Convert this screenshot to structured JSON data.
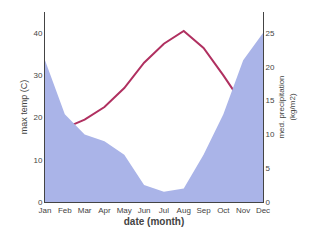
{
  "chart_data": {
    "type": "line",
    "xlabel": "date (month)",
    "ylabel": "max temp (C)",
    "y2label": "med. precipitation\n(kg/m2)",
    "categories": [
      "Jan",
      "Feb",
      "Mar",
      "Apr",
      "May",
      "Jun",
      "Jul",
      "Aug",
      "Sep",
      "Oct",
      "Nov",
      "Dec"
    ],
    "series": [
      {
        "type": "area",
        "axis": "y2",
        "color": "#aab4e8",
        "values": [
          21.0,
          13.0,
          10.0,
          9.0,
          7.0,
          2.5,
          1.5,
          2.0,
          7.0,
          13.0,
          21.0,
          25.0
        ]
      },
      {
        "type": "line",
        "color": "#b03060",
        "values": [
          16.5,
          17.5,
          19.5,
          22.5,
          27.0,
          33.0,
          37.5,
          40.5,
          36.5,
          30.0,
          23.0,
          18.5
        ]
      }
    ],
    "ylim": [
      0,
      45
    ],
    "yticks": [
      0,
      10,
      20,
      30,
      40
    ],
    "y2lim": [
      0,
      28.125
    ],
    "y2ticks": [
      0,
      5,
      10,
      15,
      20,
      25
    ],
    "grid": false
  }
}
